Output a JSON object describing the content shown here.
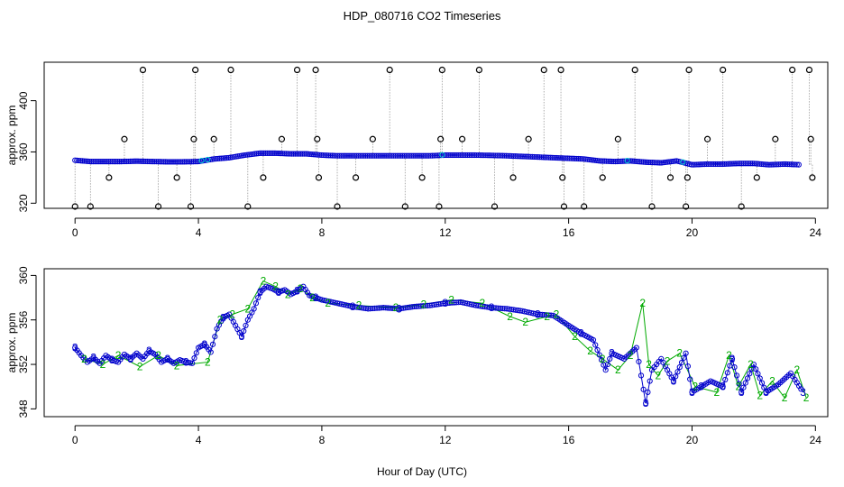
{
  "title": "HDP_080716  CO2 Timeseries",
  "xlabel": "Hour of Day (UTC)",
  "colors": {
    "raw_points": "#000000",
    "blue_series": "#0000cc",
    "cyan_series": "#00cccc",
    "green_series": "#00aa00",
    "connector": "#999999"
  },
  "chart_data": [
    {
      "type": "scatter",
      "title": "HDP_080716  CO2 Timeseries",
      "xlabel": "",
      "ylabel": "approx. ppm",
      "xlim": [
        -1,
        24.4
      ],
      "ylim": [
        316,
        430
      ],
      "x_ticks": [
        "0",
        "4",
        "8",
        "12",
        "16",
        "20",
        "24"
      ],
      "y_ticks": [
        "320",
        "360",
        "400"
      ],
      "x_tick_values": [
        0,
        4,
        8,
        12,
        16,
        20,
        24
      ],
      "y_tick_values": [
        320,
        360,
        400
      ],
      "series": [
        {
          "marker": "circle",
          "color": "#000000",
          "x": [
            0.0,
            0.5,
            1.1,
            1.6,
            2.2,
            2.7,
            3.3,
            3.75,
            3.85,
            3.9,
            4.5,
            5.05,
            5.6,
            6.1,
            6.7,
            7.2,
            7.8,
            7.85,
            7.9,
            8.5,
            9.1,
            9.65,
            10.2,
            10.7,
            11.25,
            11.8,
            11.85,
            11.9,
            12.55,
            13.1,
            13.6,
            14.2,
            14.7,
            15.2,
            15.75,
            15.8,
            15.85,
            16.5,
            17.1,
            17.6,
            18.15,
            18.7,
            19.3,
            19.8,
            19.85,
            19.9,
            20.5,
            21.0,
            21.6,
            22.1,
            22.7,
            23.25,
            23.8,
            23.85,
            23.9
          ],
          "y": [
            315,
            315,
            340,
            370,
            424,
            315,
            340,
            315,
            370,
            424,
            370,
            424,
            315,
            340,
            370,
            424,
            424,
            370,
            340,
            315,
            340,
            370,
            424,
            315,
            340,
            315,
            370,
            424,
            370,
            424,
            315,
            340,
            370,
            424,
            424,
            340,
            315,
            315,
            340,
            370,
            424,
            315,
            340,
            315,
            340,
            424,
            370,
            424,
            315,
            340,
            370,
            424,
            424,
            370,
            340
          ]
        },
        {
          "name": "",
          "marker": "circle",
          "color": "#0000cc",
          "x": [
            0,
            0.5,
            1,
            1.5,
            2,
            2.5,
            3,
            3.5,
            4,
            4.5,
            5,
            5.5,
            6,
            6.5,
            7,
            7.5,
            8,
            8.5,
            9,
            9.5,
            10,
            10.5,
            11,
            11.5,
            12,
            12.5,
            13,
            13.5,
            14,
            14.5,
            15,
            15.5,
            16,
            16.5,
            17,
            17.5,
            18,
            18.5,
            19,
            19.5,
            20,
            20.5,
            21,
            21.5,
            22,
            22.5,
            23,
            23.5
          ],
          "y": [
            353.5,
            352.5,
            352.5,
            352.5,
            352.8,
            352.5,
            352.3,
            352.3,
            352.5,
            354.5,
            355.5,
            357.5,
            359,
            359,
            358.5,
            358.5,
            357.5,
            357,
            357,
            357,
            357,
            357,
            357,
            357,
            357.5,
            357.5,
            357.5,
            357.3,
            357,
            356.5,
            356,
            355.5,
            355,
            354.5,
            353,
            352.5,
            353,
            352,
            351.5,
            353,
            350,
            350.5,
            350.5,
            351,
            351,
            350,
            350.5,
            350
          ]
        }
      ]
    },
    {
      "type": "line",
      "title": "",
      "xlabel": "Hour of Day (UTC)",
      "ylabel": "approx. ppm",
      "xlim": [
        -1,
        24.4
      ],
      "ylim": [
        347.3,
        360.6
      ],
      "x_ticks": [
        "0",
        "4",
        "8",
        "12",
        "16",
        "20",
        "24"
      ],
      "y_ticks": [
        "348",
        "352",
        "356",
        "360"
      ],
      "x_tick_values": [
        0,
        4,
        8,
        12,
        16,
        20,
        24
      ],
      "y_tick_values": [
        348,
        352,
        356,
        360
      ],
      "series": [
        {
          "marker": "3",
          "color": "#0000cc",
          "x": [
            0.0,
            0.2,
            0.4,
            0.6,
            0.8,
            1.0,
            1.2,
            1.4,
            1.6,
            1.8,
            2.0,
            2.2,
            2.4,
            2.6,
            2.8,
            3.0,
            3.2,
            3.4,
            3.6,
            3.8,
            4.0,
            4.2,
            4.4,
            4.6,
            4.8,
            5.0,
            5.2,
            5.4,
            5.6,
            5.8,
            6.0,
            6.2,
            6.4,
            6.6,
            6.8,
            7.0,
            7.2,
            7.4,
            7.6,
            7.8,
            8.0,
            8.5,
            9.0,
            9.5,
            10.0,
            10.5,
            11.0,
            11.5,
            12.0,
            12.5,
            13.0,
            13.5,
            14.0,
            14.5,
            15.0,
            15.5,
            16.0,
            16.4,
            16.8,
            17.2,
            17.4,
            17.8,
            18.2,
            18.5,
            18.7,
            19.0,
            19.4,
            19.8,
            20.0,
            20.3,
            20.6,
            21.0,
            21.3,
            21.6,
            22.0,
            22.4,
            22.8,
            23.2,
            23.6
          ],
          "y": [
            353.5,
            352.8,
            352.2,
            352.6,
            352.1,
            352.8,
            352.4,
            352.2,
            352.9,
            352.5,
            353.0,
            352.5,
            353.2,
            352.9,
            352.2,
            352.5,
            352.1,
            352.4,
            352.2,
            352.1,
            353.5,
            353.8,
            353.1,
            355.2,
            356.2,
            356.5,
            355.5,
            354.5,
            356.0,
            357.0,
            358.5,
            359.0,
            358.8,
            358.5,
            358.7,
            358.3,
            358.6,
            359.0,
            358.2,
            358.0,
            357.8,
            357.5,
            357.2,
            357.0,
            357.1,
            357.0,
            357.2,
            357.3,
            357.5,
            357.6,
            357.3,
            357.1,
            357.0,
            356.8,
            356.5,
            356.4,
            355.5,
            354.8,
            354.2,
            351.5,
            353.0,
            352.5,
            353.5,
            348.5,
            351.5,
            352.5,
            350.5,
            353.0,
            349.5,
            350.0,
            350.5,
            350.0,
            352.5,
            349.5,
            352.0,
            349.5,
            350.2,
            351.2,
            349.5
          ]
        },
        {
          "marker": "2",
          "color": "#00aa00",
          "x": [
            0.3,
            0.9,
            1.4,
            2.1,
            2.7,
            3.3,
            4.3,
            4.7,
            5.1,
            5.6,
            6.1,
            6.5,
            6.9,
            7.3,
            7.7,
            8.2,
            9.2,
            10.4,
            11.3,
            12.2,
            13.2,
            14.1,
            14.6,
            15.3,
            15.6,
            16.2,
            16.7,
            17.1,
            17.6,
            18.0,
            18.4,
            18.6,
            18.9,
            19.2,
            19.6,
            20.1,
            20.8,
            21.2,
            21.5,
            21.9,
            22.2,
            22.6,
            23.0,
            23.4,
            23.7
          ],
          "y": [
            352.5,
            352.0,
            352.8,
            351.8,
            352.8,
            351.9,
            352.2,
            356.0,
            356.5,
            357.0,
            359.5,
            359.0,
            358.3,
            358.8,
            358.0,
            357.5,
            357.3,
            357.1,
            357.4,
            357.8,
            357.5,
            356.3,
            355.8,
            356.3,
            356.5,
            354.5,
            353.2,
            352.5,
            351.5,
            352.8,
            357.5,
            352.0,
            351.0,
            352.3,
            353.0,
            350.0,
            349.5,
            352.8,
            350.0,
            352.0,
            349.2,
            350.5,
            349.0,
            351.5,
            349.0
          ]
        }
      ]
    }
  ]
}
